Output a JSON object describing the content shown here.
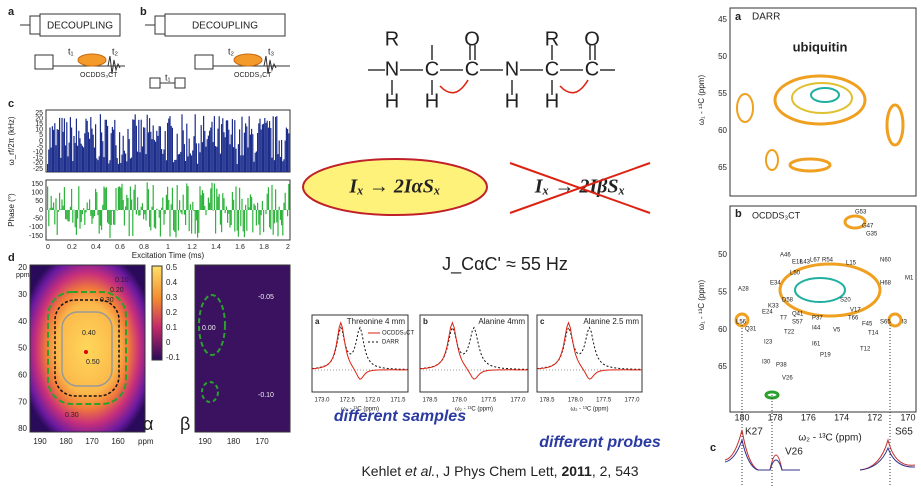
{
  "pulse_sequences": {
    "a": {
      "label": "a",
      "decoupling": "DECOUPLING",
      "t1": "t₁",
      "t2": "t₂",
      "element": "OCDDS₃CT"
    },
    "b": {
      "label": "b",
      "decoupling": "DECOUPLING",
      "t1": "t₁",
      "t2": "t₂",
      "t3": "t₃",
      "element": "OCDDS₃CT"
    }
  },
  "panel_c": {
    "label": "c",
    "rf_ylabel": "ω_rf/2π (kHz)",
    "rf_yticks": [
      "25",
      "20",
      "15",
      "10",
      "5",
      "0",
      "-5",
      "-10",
      "-15",
      "-20",
      "-25"
    ],
    "phase_ylabel": "Phase (°)",
    "phase_yticks": [
      "150",
      "100",
      "50",
      "0",
      "-50",
      "-100",
      "-150"
    ],
    "xticks": [
      "0",
      "0.2",
      "0.4",
      "0.6",
      "0.8",
      "1",
      "1.2",
      "1.4",
      "1.6",
      "1.8",
      "2"
    ],
    "xlabel": "Excitation Time (ms)"
  },
  "panel_d": {
    "label": "d",
    "ppm_top": "ppm",
    "yticks": [
      "20",
      "30",
      "40",
      "50",
      "60",
      "70",
      "80"
    ],
    "xticks": [
      "190",
      "180",
      "170",
      "160"
    ],
    "ppm_bottom": "ppm",
    "colorbar_ticks": [
      "0.5",
      "0.4",
      "0.3",
      "0.2",
      "0.1",
      "0",
      "-0.1"
    ],
    "contour_labels": [
      "0.50",
      "0.40",
      "0.30",
      "0.20",
      "0.10",
      "0.30"
    ],
    "alpha": "α",
    "beta": "β",
    "beta_labels": [
      "-0.05",
      "0.00",
      "-0.10"
    ],
    "beta_xticks": [
      "190",
      "180",
      "170"
    ]
  },
  "molecule": {
    "atoms": [
      "R",
      "O",
      "N",
      "C",
      "C",
      "N",
      "C",
      "C",
      "H",
      "H",
      "H",
      "H",
      "R",
      "O"
    ]
  },
  "equations": {
    "allowed": "Iₓ → 2IαSₓ",
    "forbidden": "Iₓ → 2IβSₓ"
  },
  "coupling": "J_CαC' ≈ 55 Hz",
  "spectra": {
    "panels": [
      {
        "label": "a",
        "title": "Threonine 4 mm",
        "xticks": [
          "173.0",
          "172.5",
          "172.0",
          "171.5"
        ]
      },
      {
        "label": "b",
        "title": "Alanine 4mm",
        "xticks": [
          "178.5",
          "178.0",
          "177.5",
          "177.0"
        ]
      },
      {
        "label": "c",
        "title": "Alanine 2.5 mm",
        "xticks": [
          "178.5",
          "178.0",
          "177.5",
          "177.0"
        ]
      }
    ],
    "legend": [
      "OCDDS₃CT",
      "DARR"
    ],
    "xlabel": "ω₂ - ¹³C (ppm)"
  },
  "captions": {
    "samples": "different samples",
    "probes": "different probes"
  },
  "citation": {
    "authors": "Kehlet",
    "etal": "et al.",
    "journal": ", J Phys Chem Lett, ",
    "year": "2011",
    "rest": ", 2, 543"
  },
  "right": {
    "a": {
      "label": "a",
      "method": "DARR",
      "protein": "ubiquitin",
      "yticks": [
        "45",
        "50",
        "55",
        "60",
        "65"
      ],
      "ylabel": "ω₁ - ¹³C (ppm)"
    },
    "b": {
      "label": "b",
      "method": "OCDDS₃CT",
      "yticks": [
        "50",
        "55",
        "60",
        "65"
      ],
      "ylabel": "ω₁ - ¹³C (ppm)",
      "xticks": [
        "180",
        "178",
        "176",
        "174",
        "172",
        "170"
      ],
      "xlabel": "ω₂ - ¹³C (ppm)",
      "residues": [
        "G53",
        "G47",
        "G35",
        "A46",
        "E18",
        "L43",
        "L67",
        "R54",
        "L15",
        "N60",
        "H68",
        "M1",
        "A28",
        "E34",
        "L50",
        "D58",
        "S20",
        "E24",
        "K33",
        "Q41",
        "T7",
        "T22",
        "F45",
        "S65",
        "I3",
        "L56",
        "Q31",
        "I23",
        "S57",
        "I44",
        "T14",
        "T12",
        "I61",
        "P19",
        "P37",
        "I30",
        "P38",
        "V26",
        "V17",
        "T66",
        "V5"
      ]
    },
    "c": {
      "label": "c",
      "peaks": [
        "K27",
        "V26",
        "S65"
      ]
    }
  }
}
